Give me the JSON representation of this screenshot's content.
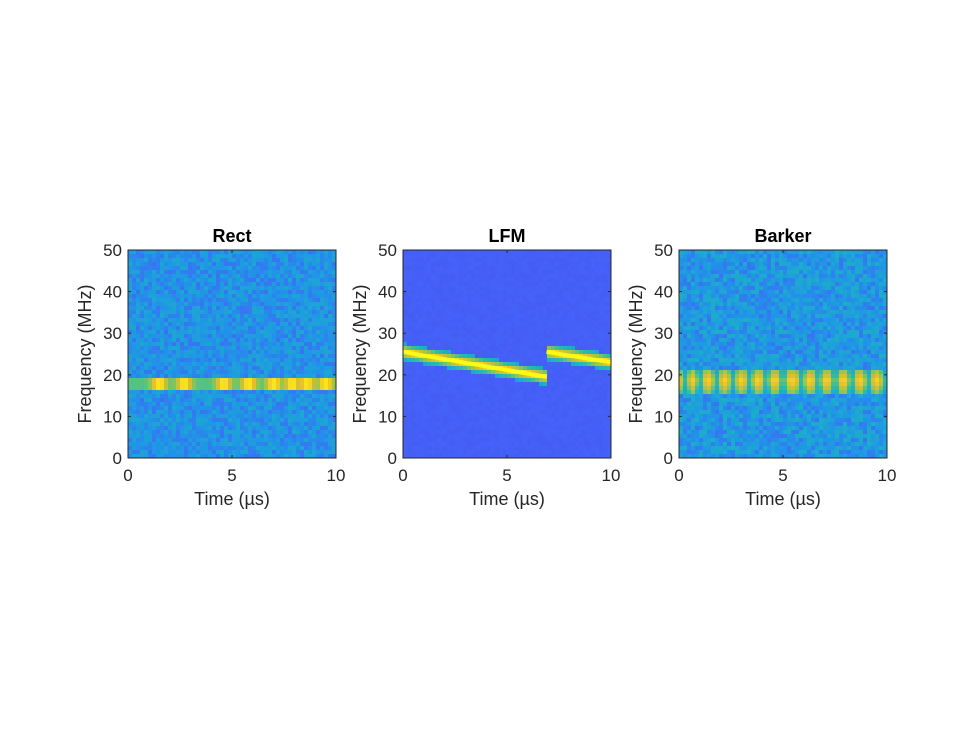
{
  "colors": {
    "background": "#ffffff",
    "axis": "#262626",
    "colormap": [
      "#3e26a8",
      "#4462f9",
      "#1f96e7",
      "#1cb0c6",
      "#2cbea3",
      "#90c74f",
      "#e5bd2b",
      "#fadf1f",
      "#f9fb15"
    ]
  },
  "chart_data": [
    {
      "type": "heatmap",
      "title": "Rect",
      "xlabel": "Time (µs)",
      "ylabel": "Frequency (MHz)",
      "xlim": [
        0,
        10
      ],
      "ylim": [
        0,
        50
      ],
      "xticks": [
        0,
        5,
        10
      ],
      "yticks": [
        0,
        10,
        20,
        30,
        40,
        50
      ],
      "pattern": "rect",
      "background_level": 0.25,
      "band_frequency_mhz": 18,
      "band_hotspots_us": [
        1.5,
        2.7,
        4.6,
        5.8,
        7.0,
        7.9,
        8.6,
        9.5
      ]
    },
    {
      "type": "heatmap",
      "title": "LFM",
      "xlabel": "Time (µs)",
      "ylabel": "Frequency (MHz)",
      "xlim": [
        0,
        10
      ],
      "ylim": [
        0,
        50
      ],
      "xticks": [
        0,
        5,
        10
      ],
      "yticks": [
        0,
        10,
        20,
        30,
        40,
        50
      ],
      "pattern": "lfm",
      "background_level": 0.12,
      "chirp_segments": [
        {
          "t_start": 0.0,
          "t_end": 6.9,
          "f_start": 25.5,
          "f_end": 19.5
        },
        {
          "t_start": 6.9,
          "t_end": 10.0,
          "f_start": 25.5,
          "f_end": 23.0
        }
      ]
    },
    {
      "type": "heatmap",
      "title": "Barker",
      "xlabel": "Time (µs)",
      "ylabel": "Frequency (MHz)",
      "xlim": [
        0,
        10
      ],
      "ylim": [
        0,
        50
      ],
      "xticks": [
        0,
        5,
        10
      ],
      "yticks": [
        0,
        10,
        20,
        30,
        40,
        50
      ],
      "pattern": "barker",
      "background_level": 0.27,
      "band_frequency_mhz": 18.5,
      "band_nodes_us": [
        0.3,
        1.0,
        1.8,
        2.6,
        3.4,
        4.2,
        5.0,
        5.9,
        6.7,
        7.5,
        8.3,
        9.1,
        9.9
      ]
    }
  ]
}
